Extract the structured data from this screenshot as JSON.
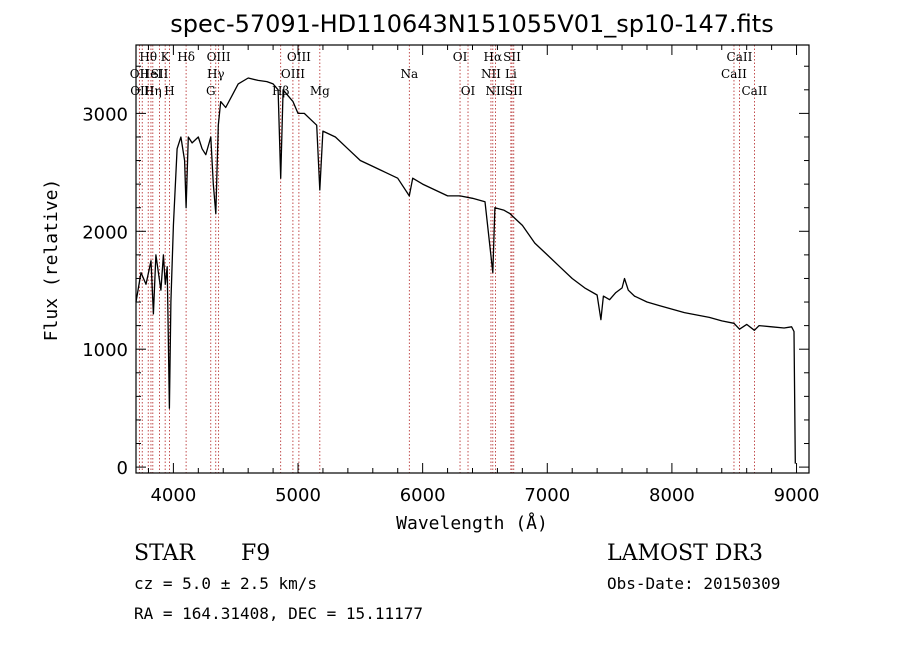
{
  "chart_data": {
    "type": "line",
    "title": "spec-57091-HD110643N151055V01_sp10-147.fits",
    "xlabel": "Wavelength (Å)",
    "ylabel": "Flux (relative)",
    "xlim": [
      3700,
      9100
    ],
    "ylim": [
      -50,
      3580
    ],
    "xticks": [
      4000,
      5000,
      6000,
      7000,
      8000,
      9000
    ],
    "yticks": [
      0,
      1000,
      2000,
      3000
    ],
    "series": [
      {
        "name": "flux",
        "x": [
          3700,
          3740,
          3780,
          3800,
          3820,
          3840,
          3860,
          3880,
          3900,
          3920,
          3935,
          3950,
          3968,
          3980,
          4000,
          4030,
          4060,
          4090,
          4102,
          4120,
          4150,
          4200,
          4230,
          4260,
          4300,
          4320,
          4340,
          4360,
          4380,
          4420,
          4470,
          4520,
          4600,
          4680,
          4750,
          4800,
          4840,
          4861,
          4880,
          4920,
          4960,
          5000,
          5050,
          5100,
          5150,
          5175,
          5200,
          5300,
          5400,
          5500,
          5600,
          5700,
          5800,
          5893,
          5920,
          6000,
          6100,
          6200,
          6300,
          6400,
          6500,
          6563,
          6580,
          6650,
          6700,
          6750,
          6800,
          6900,
          7000,
          7100,
          7200,
          7300,
          7400,
          7430,
          7450,
          7500,
          7550,
          7600,
          7620,
          7650,
          7700,
          7800,
          7900,
          8000,
          8100,
          8200,
          8300,
          8400,
          8498,
          8542,
          8600,
          8662,
          8700,
          8800,
          8900,
          8960,
          8980,
          8990
        ],
        "values": [
          1400,
          1650,
          1550,
          1650,
          1750,
          1300,
          1800,
          1650,
          1500,
          1800,
          1550,
          1700,
          500,
          1400,
          2050,
          2700,
          2800,
          2600,
          2200,
          2800,
          2750,
          2800,
          2700,
          2650,
          2800,
          2400,
          2150,
          2900,
          3100,
          3050,
          3150,
          3250,
          3300,
          3280,
          3270,
          3250,
          3200,
          2450,
          3200,
          3150,
          3100,
          3000,
          3000,
          2950,
          2900,
          2350,
          2850,
          2800,
          2700,
          2600,
          2550,
          2500,
          2450,
          2300,
          2450,
          2400,
          2350,
          2300,
          2300,
          2280,
          2250,
          1650,
          2200,
          2180,
          2150,
          2100,
          2050,
          1900,
          1800,
          1700,
          1600,
          1520,
          1460,
          1250,
          1450,
          1420,
          1480,
          1520,
          1600,
          1500,
          1450,
          1400,
          1370,
          1340,
          1310,
          1290,
          1270,
          1240,
          1220,
          1170,
          1210,
          1160,
          1200,
          1190,
          1180,
          1190,
          1150,
          30
        ]
      }
    ],
    "lines": [
      {
        "wavelength": 3727,
        "label": "OII",
        "row": 1
      },
      {
        "wavelength": 3750,
        "label": "OIII",
        "row": 2
      },
      {
        "wavelength": 3798,
        "label": "Hθ",
        "row": 0
      },
      {
        "wavelength": 3820,
        "label": "HeI",
        "row": 1
      },
      {
        "wavelength": 3835,
        "label": "Hη",
        "row": 2
      },
      {
        "wavelength": 3889,
        "label": "SII",
        "row": 1
      },
      {
        "wavelength": 3934,
        "label": "K",
        "row": 0
      },
      {
        "wavelength": 3969,
        "label": "H",
        "row": 2
      },
      {
        "wavelength": 4102,
        "label": "Hδ",
        "row": 0
      },
      {
        "wavelength": 4300,
        "label": "G",
        "row": 2
      },
      {
        "wavelength": 4340,
        "label": "Hγ",
        "row": 1
      },
      {
        "wavelength": 4363,
        "label": "OIII",
        "row": 0
      },
      {
        "wavelength": 4861,
        "label": "Hβ",
        "row": 2
      },
      {
        "wavelength": 4959,
        "label": "OIII",
        "row": 1
      },
      {
        "wavelength": 5007,
        "label": "OIII",
        "row": 0
      },
      {
        "wavelength": 5175,
        "label": "Mg",
        "row": 2
      },
      {
        "wavelength": 5893,
        "label": "Na",
        "row": 1
      },
      {
        "wavelength": 6300,
        "label": "OI",
        "row": 0
      },
      {
        "wavelength": 6364,
        "label": "OI",
        "row": 2
      },
      {
        "wavelength": 6548,
        "label": "NII",
        "row": 1
      },
      {
        "wavelength": 6563,
        "label": "Hα",
        "row": 0
      },
      {
        "wavelength": 6584,
        "label": "NII",
        "row": 2
      },
      {
        "wavelength": 6708,
        "label": "Li",
        "row": 1
      },
      {
        "wavelength": 6717,
        "label": "SII",
        "row": 0
      },
      {
        "wavelength": 6731,
        "label": "SII",
        "row": 2
      },
      {
        "wavelength": 8498,
        "label": "CaII",
        "row": 1
      },
      {
        "wavelength": 8542,
        "label": "CaII",
        "row": 0
      },
      {
        "wavelength": 8662,
        "label": "CaII",
        "row": 2
      }
    ]
  },
  "info": {
    "object_type": "STAR",
    "subclass": "F9",
    "cz": "cz = 5.0 ± 2.5 km/s",
    "coords": "RA = 164.31408, DEC =  15.11177",
    "survey": "LAMOST DR3",
    "obs_date": "Obs-Date: 20150309"
  },
  "colors": {
    "spectrum": "#000000",
    "line_marker": "#b22222",
    "axes": "#000000",
    "background": "#ffffff"
  }
}
